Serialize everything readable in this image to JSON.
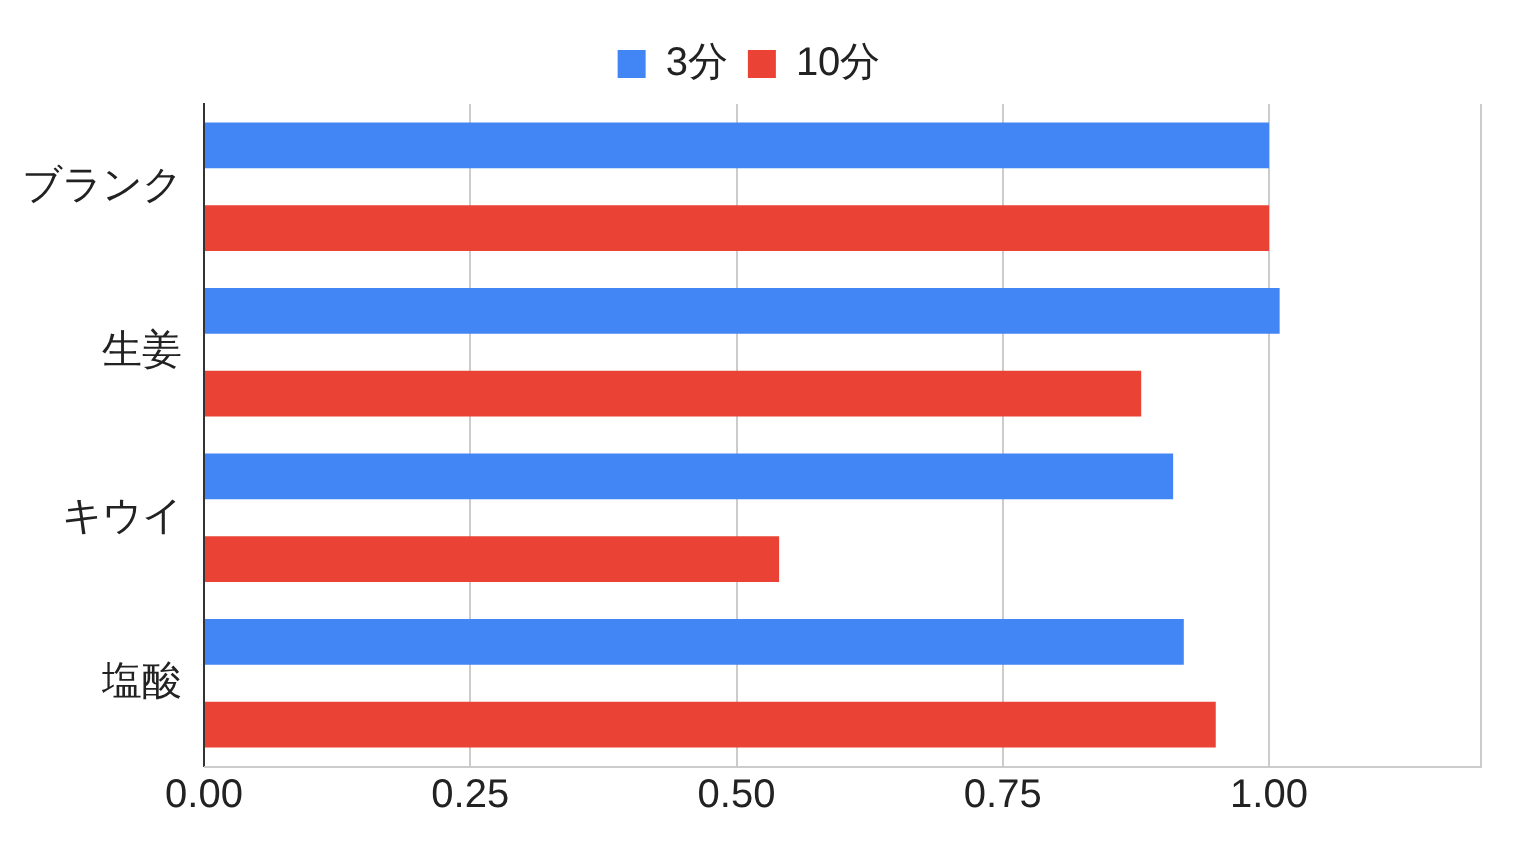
{
  "chart_data": {
    "type": "bar",
    "orientation": "horizontal",
    "categories": [
      "ブランク",
      "生姜",
      "キウイ",
      "塩酸"
    ],
    "series": [
      {
        "name": "3分",
        "color": "#4285f4",
        "values": [
          1.0,
          1.01,
          0.91,
          0.92
        ]
      },
      {
        "name": "10分",
        "color": "#ea4335",
        "values": [
          1.0,
          0.88,
          0.54,
          0.95
        ]
      }
    ],
    "xlim": [
      0,
      1.2
    ],
    "xticks": [
      {
        "value": 0,
        "label": "0.00"
      },
      {
        "value": 0.25,
        "label": "0.25"
      },
      {
        "value": 0.5,
        "label": "0.50"
      },
      {
        "value": 0.75,
        "label": "0.75"
      },
      {
        "value": 1,
        "label": "1.00"
      }
    ],
    "grid": "x",
    "legend": "top"
  }
}
